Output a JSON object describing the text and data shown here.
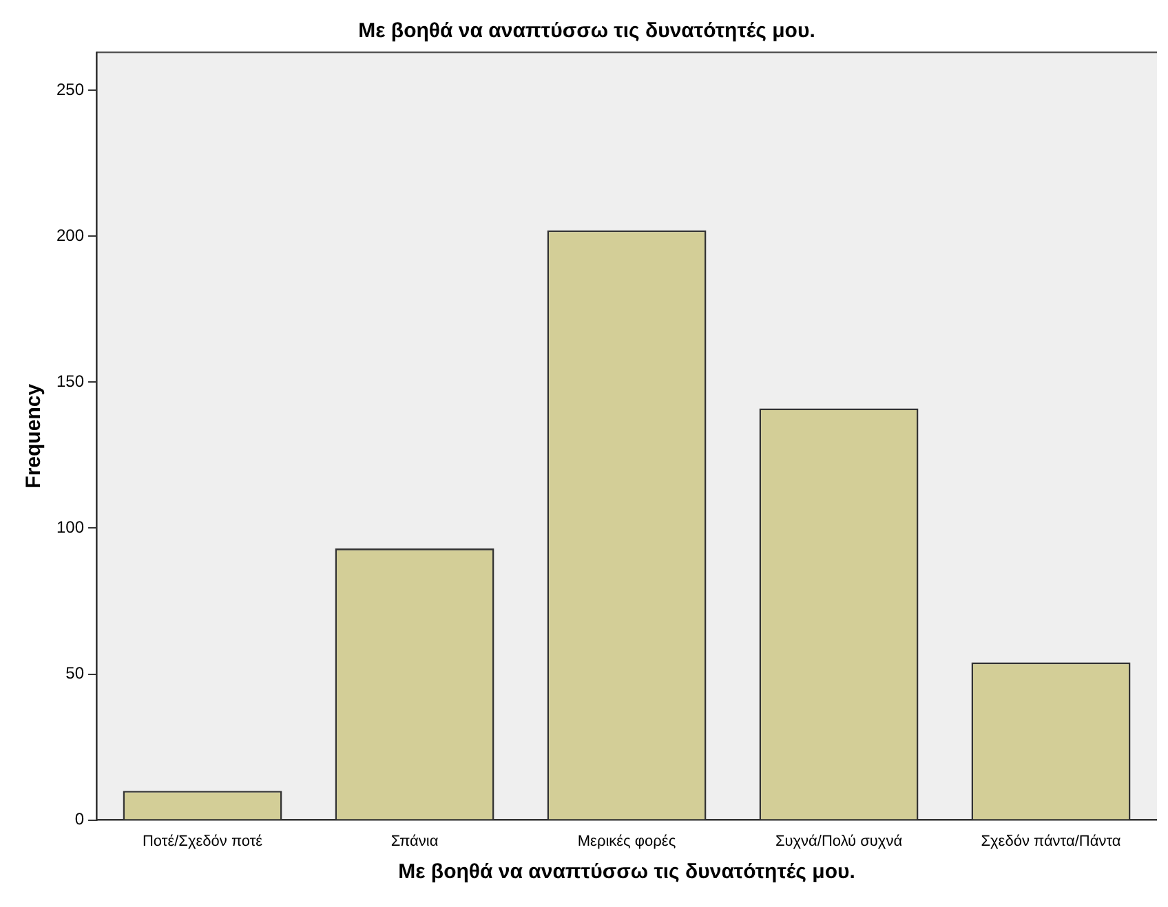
{
  "chart_data": {
    "type": "bar",
    "title": "Με βοηθά να αναπτύσσω τις δυνατότητές μου.",
    "xlabel": "Με βοηθά να αναπτύσσω τις δυνατότητές μου.",
    "ylabel": "Frequency",
    "categories": [
      "Ποτέ/Σχεδόν ποτέ",
      "Σπάνια",
      "Μερικές φορές",
      "Συχνά/Πολύ συχνά",
      "Σχεδόν πάντα/Πάντα"
    ],
    "values": [
      10,
      93,
      202,
      141,
      54
    ],
    "color": "#d3ce97",
    "ylim": [
      0,
      263
    ],
    "yticks": [
      0,
      50,
      100,
      150,
      200,
      250
    ],
    "grid": false,
    "legend": false
  }
}
